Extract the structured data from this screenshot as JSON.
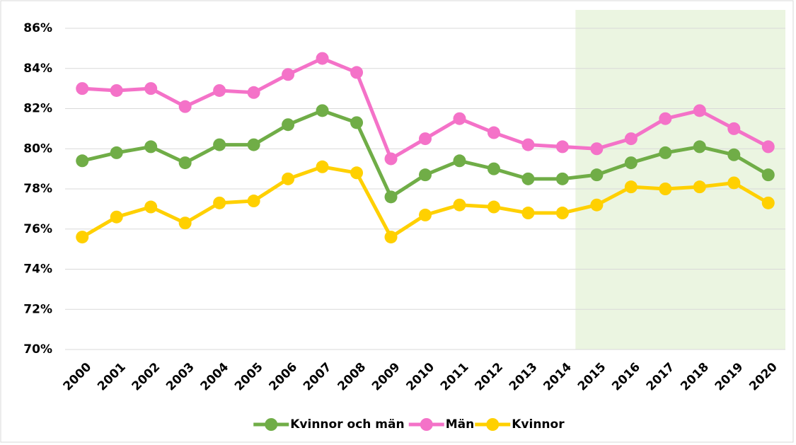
{
  "chart_data": {
    "type": "line",
    "categories": [
      "2000",
      "2001",
      "2002",
      "2003",
      "2004",
      "2005",
      "2006",
      "2007",
      "2008",
      "2009",
      "2010",
      "2011",
      "2012",
      "2013",
      "2014",
      "2015",
      "2016",
      "2017",
      "2018",
      "2019",
      "2020"
    ],
    "series": [
      {
        "name": "Kvinnor och män",
        "color": "#70ad47",
        "values": [
          79.4,
          79.8,
          80.1,
          79.3,
          80.2,
          80.2,
          81.2,
          81.9,
          81.3,
          77.6,
          78.7,
          79.4,
          79.0,
          78.5,
          78.5,
          78.7,
          79.3,
          79.8,
          80.1,
          79.7,
          78.7
        ]
      },
      {
        "name": "Män",
        "color": "#f472c8",
        "values": [
          83.0,
          82.9,
          83.0,
          82.1,
          82.9,
          82.8,
          83.7,
          84.5,
          83.8,
          79.5,
          80.5,
          81.5,
          80.8,
          80.2,
          80.1,
          80.0,
          80.5,
          81.5,
          81.9,
          81.0,
          80.1
        ]
      },
      {
        "name": "Kvinnor",
        "color": "#ffd000",
        "values": [
          75.6,
          76.6,
          77.1,
          76.3,
          77.3,
          77.4,
          78.5,
          79.1,
          78.8,
          75.6,
          76.7,
          77.2,
          77.1,
          76.8,
          76.8,
          77.2,
          78.1,
          78.0,
          78.1,
          78.3,
          77.3
        ]
      }
    ],
    "ylim": [
      70,
      86
    ],
    "yticks": [
      {
        "value": 70,
        "label": "70%"
      },
      {
        "value": 72,
        "label": "72%"
      },
      {
        "value": 74,
        "label": "74%"
      },
      {
        "value": 76,
        "label": "76%"
      },
      {
        "value": 78,
        "label": "78%"
      },
      {
        "value": 80,
        "label": "80%"
      },
      {
        "value": 82,
        "label": "82%"
      },
      {
        "value": 84,
        "label": "84%"
      },
      {
        "value": 86,
        "label": "86%"
      }
    ],
    "grid": true,
    "legend": "bottom"
  }
}
